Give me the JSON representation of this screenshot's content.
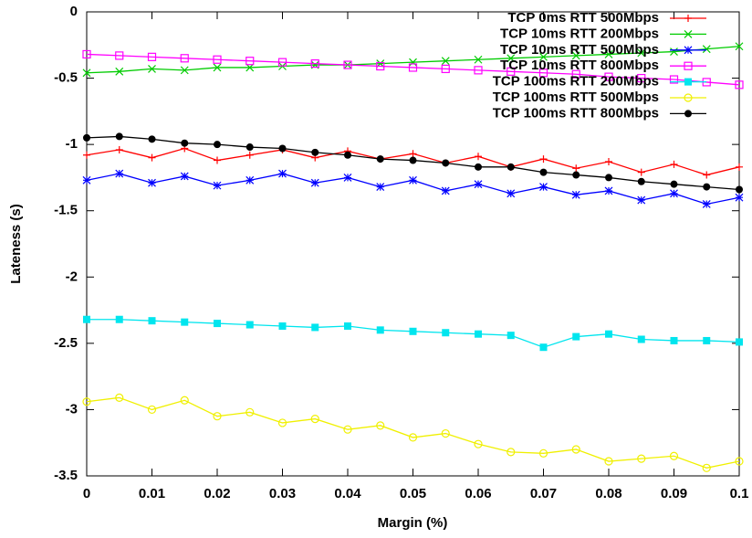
{
  "chart_data": {
    "type": "line",
    "x_label": "Margin (%)",
    "y_label": "Lateness (s)",
    "x": [
      0,
      0.005,
      0.01,
      0.015,
      0.02,
      0.025,
      0.03,
      0.035,
      0.04,
      0.045,
      0.05,
      0.055,
      0.06,
      0.065,
      0.07,
      0.075,
      0.08,
      0.085,
      0.09,
      0.095,
      0.1
    ],
    "xlim": [
      0,
      0.1
    ],
    "xticks": [
      0,
      0.01,
      0.02,
      0.03,
      0.04,
      0.05,
      0.06,
      0.07,
      0.08,
      0.09,
      0.1
    ],
    "ylim": [
      -3.5,
      0
    ],
    "yticks": [
      0,
      -0.5,
      -1,
      -1.5,
      -2,
      -2.5,
      -3,
      -3.5
    ],
    "legend": "top-right",
    "series": [
      {
        "name": "TCP 0ms RTT 500Mbps",
        "color": "#ff0000",
        "marker": "plus",
        "values": [
          -1.08,
          -1.04,
          -1.1,
          -1.03,
          -1.12,
          -1.08,
          -1.04,
          -1.1,
          -1.05,
          -1.11,
          -1.07,
          -1.14,
          -1.09,
          -1.17,
          -1.11,
          -1.18,
          -1.13,
          -1.21,
          -1.15,
          -1.23,
          -1.17
        ]
      },
      {
        "name": "TCP 10ms RTT 200Mbps",
        "color": "#00cc00",
        "marker": "cross",
        "values": [
          -0.46,
          -0.45,
          -0.43,
          -0.44,
          -0.42,
          -0.42,
          -0.41,
          -0.4,
          -0.4,
          -0.39,
          -0.38,
          -0.37,
          -0.36,
          -0.35,
          -0.34,
          -0.33,
          -0.32,
          -0.31,
          -0.3,
          -0.28,
          -0.26
        ]
      },
      {
        "name": "TCP 10ms RTT 500Mbps",
        "color": "#0000ff",
        "marker": "star",
        "values": [
          -1.27,
          -1.22,
          -1.29,
          -1.24,
          -1.31,
          -1.27,
          -1.22,
          -1.29,
          -1.25,
          -1.32,
          -1.27,
          -1.35,
          -1.3,
          -1.37,
          -1.32,
          -1.38,
          -1.35,
          -1.42,
          -1.37,
          -1.45,
          -1.4
        ]
      },
      {
        "name": "TCP 10ms RTT 800Mbps",
        "color": "#ff00ff",
        "marker": "open-square",
        "values": [
          -0.32,
          -0.33,
          -0.34,
          -0.35,
          -0.36,
          -0.37,
          -0.38,
          -0.39,
          -0.4,
          -0.41,
          -0.42,
          -0.43,
          -0.44,
          -0.45,
          -0.46,
          -0.47,
          -0.49,
          -0.5,
          -0.51,
          -0.53,
          -0.55
        ]
      },
      {
        "name": "TCP 100ms RTT 200Mbps",
        "color": "#00e5ee",
        "marker": "filled-square",
        "values": [
          -2.32,
          -2.32,
          -2.33,
          -2.34,
          -2.35,
          -2.36,
          -2.37,
          -2.38,
          -2.37,
          -2.4,
          -2.41,
          -2.42,
          -2.43,
          -2.44,
          -2.53,
          -2.45,
          -2.43,
          -2.47,
          -2.48,
          -2.48,
          -2.49
        ]
      },
      {
        "name": "TCP 100ms RTT 500Mbps",
        "color": "#f0f000",
        "marker": "open-circle",
        "values": [
          -2.94,
          -2.91,
          -3.0,
          -2.93,
          -3.05,
          -3.02,
          -3.1,
          -3.07,
          -3.15,
          -3.12,
          -3.21,
          -3.18,
          -3.26,
          -3.32,
          -3.33,
          -3.3,
          -3.39,
          -3.37,
          -3.35,
          -3.44,
          -3.39
        ]
      },
      {
        "name": "TCP 100ms RTT 800Mbps",
        "color": "#000000",
        "marker": "filled-circle",
        "values": [
          -0.95,
          -0.94,
          -0.96,
          -0.99,
          -1.0,
          -1.02,
          -1.03,
          -1.06,
          -1.08,
          -1.11,
          -1.12,
          -1.14,
          -1.17,
          -1.17,
          -1.21,
          -1.23,
          -1.25,
          -1.28,
          -1.3,
          -1.32,
          -1.34
        ]
      }
    ]
  }
}
